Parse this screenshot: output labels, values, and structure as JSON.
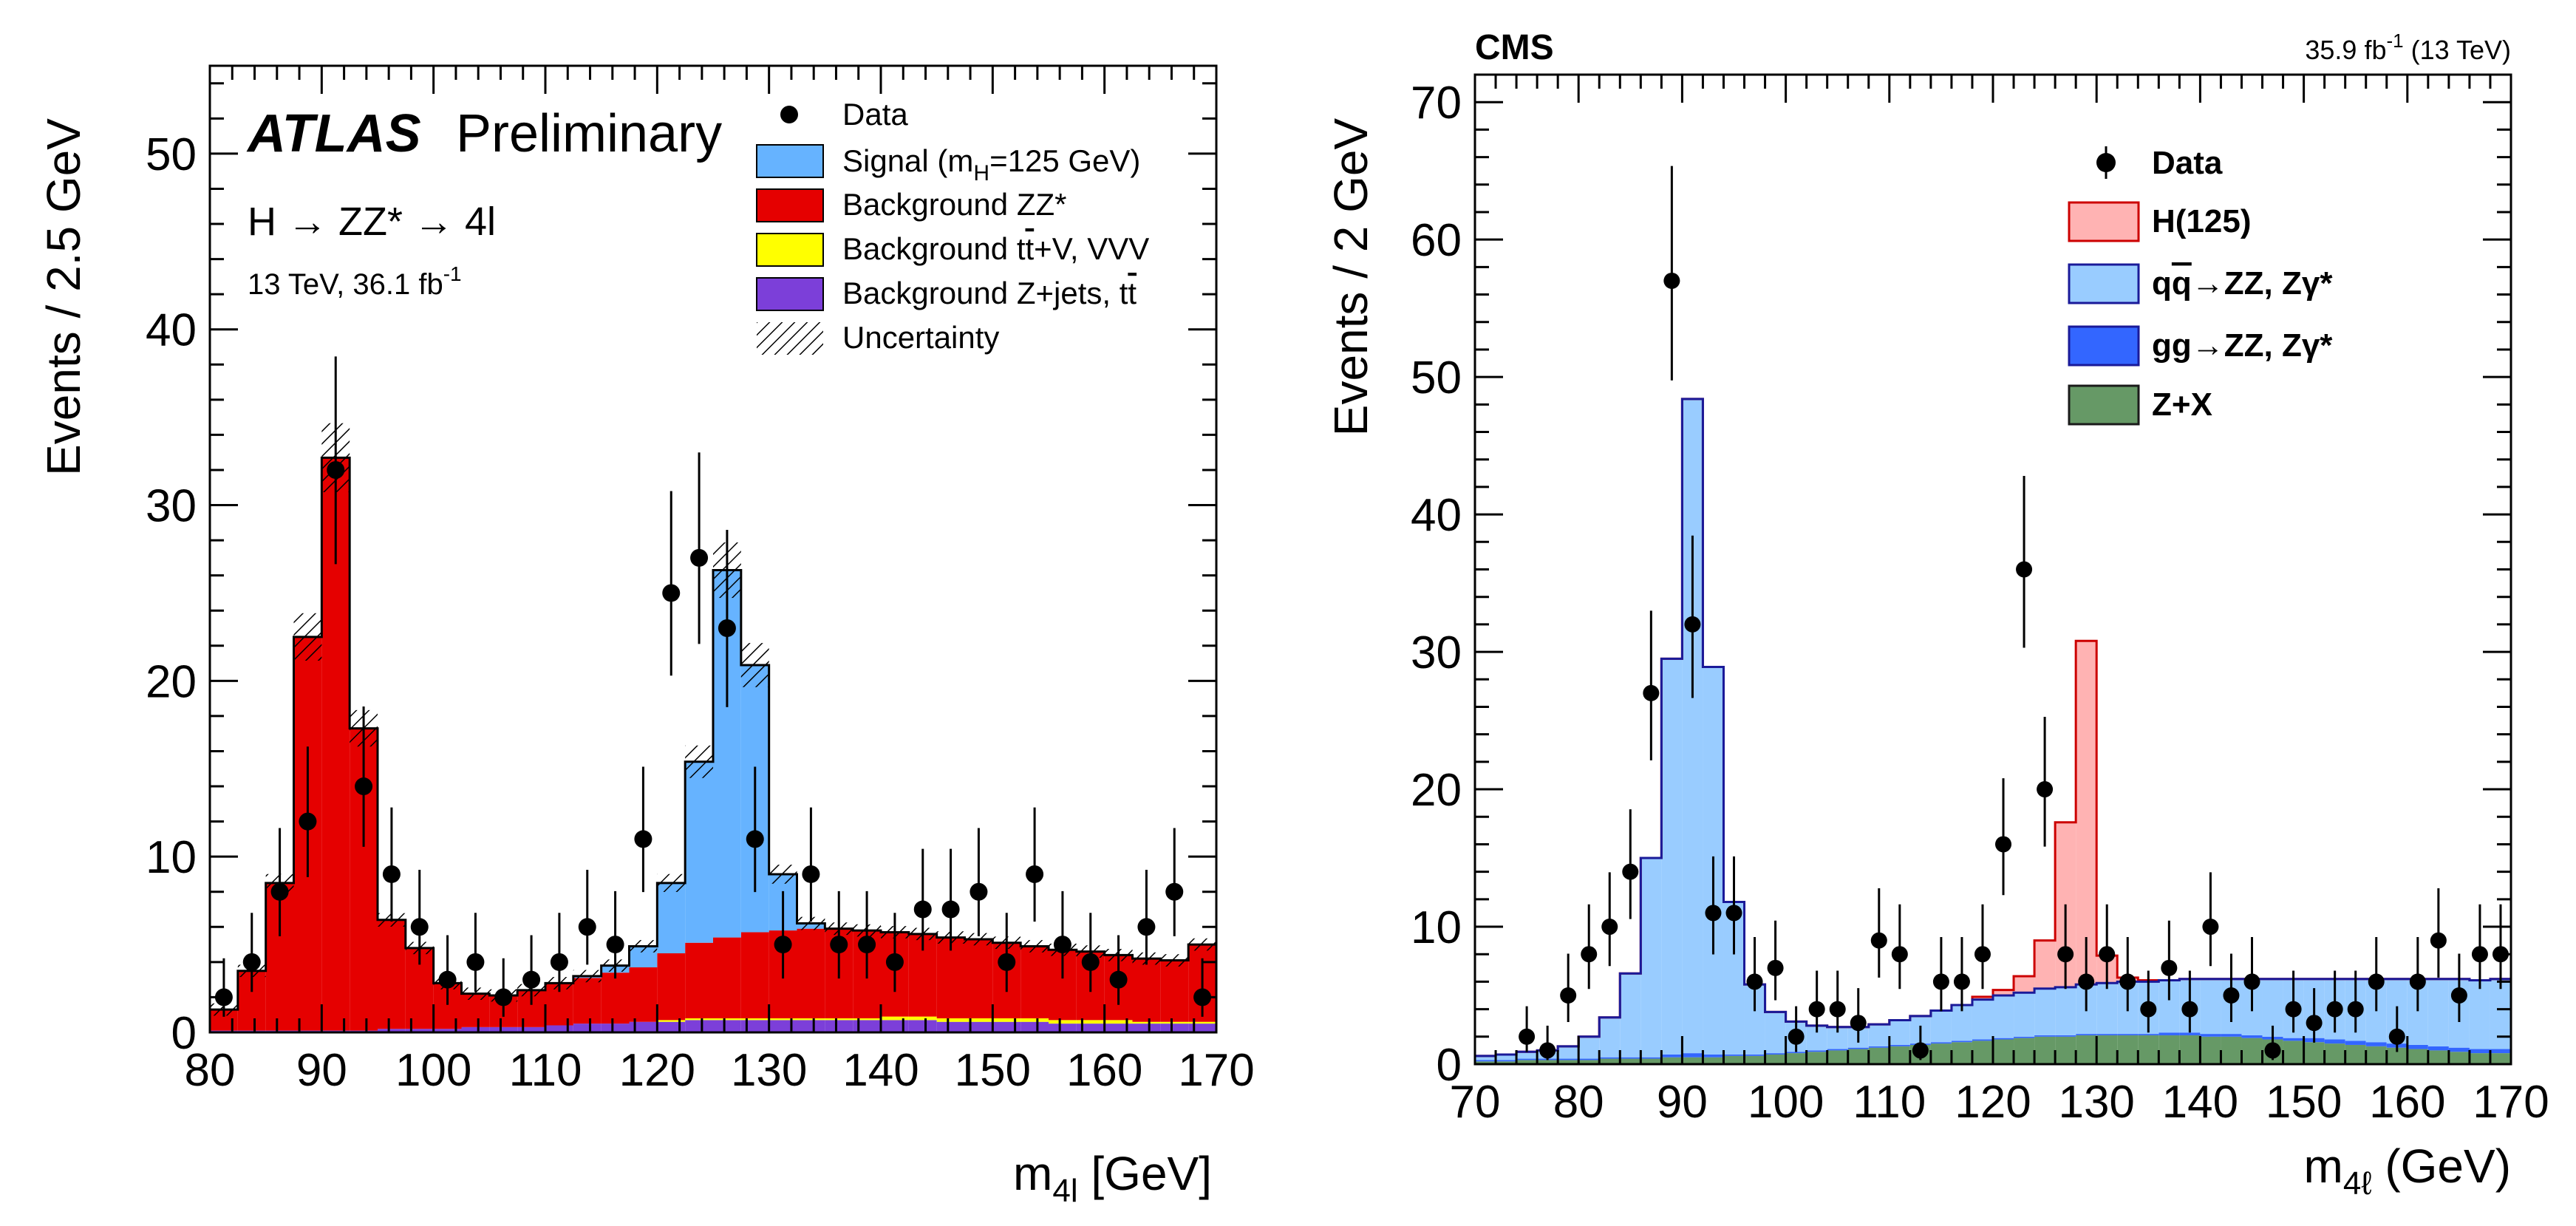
{
  "chart_data": [
    {
      "type": "bar",
      "id": "atlas",
      "experiment": "ATLAS",
      "status": "Preliminary",
      "process": "H → ZZ* → 4l",
      "energy_lumi": "13 TeV, 36.1 fb",
      "lumi_exp": "-1",
      "xlabel_main": "m",
      "xlabel_sub": "4l",
      "xlabel_unit": " [GeV]",
      "ylabel": "Events / 2.5 GeV",
      "xlim": [
        80,
        170
      ],
      "ylim": [
        0,
        55
      ],
      "xticks": [
        80,
        90,
        100,
        110,
        120,
        130,
        140,
        150,
        160,
        170
      ],
      "yticks": [
        0,
        10,
        20,
        30,
        40,
        50
      ],
      "bin_width": 2.5,
      "legend": {
        "data": "Data",
        "signal_pre": "Signal (m",
        "signal_sub": "H",
        "signal_post": "=125 GeV)",
        "zz": "Background ZZ*",
        "ttv_pre": "Background t",
        "ttv_bar": "t",
        "ttv_post": "+V, VVV",
        "zjets_pre": "Background Z+jets, t",
        "zjets_bar": "t",
        "uncertainty": "Uncertainty"
      },
      "colors": {
        "signal": "#66b3ff",
        "zz": "#e50000",
        "ttv": "#ffff00",
        "zjets": "#7c3fd9",
        "data": "#000000"
      },
      "bin_edges": [
        80,
        82.5,
        85,
        87.5,
        90,
        92.5,
        95,
        97.5,
        100,
        102.5,
        105,
        107.5,
        110,
        112.5,
        115,
        117.5,
        120,
        122.5,
        125,
        127.5,
        130,
        132.5,
        135,
        137.5,
        140,
        142.5,
        145,
        147.5,
        150,
        152.5,
        155,
        157.5,
        160,
        162.5,
        165,
        167.5,
        170
      ],
      "series": [
        {
          "name": "Background Z+jets, tt",
          "values": [
            0.1,
            0.1,
            0.1,
            0.1,
            0.1,
            0.1,
            0.2,
            0.2,
            0.2,
            0.3,
            0.3,
            0.3,
            0.4,
            0.5,
            0.5,
            0.6,
            0.6,
            0.7,
            0.7,
            0.7,
            0.7,
            0.7,
            0.7,
            0.7,
            0.7,
            0.7,
            0.6,
            0.6,
            0.6,
            0.6,
            0.5,
            0.5,
            0.5,
            0.5,
            0.5,
            0.5
          ]
        },
        {
          "name": "Background tt+V, VVV",
          "values": [
            0,
            0,
            0,
            0,
            0,
            0,
            0,
            0,
            0,
            0,
            0,
            0,
            0,
            0,
            0,
            0,
            0.1,
            0.1,
            0.1,
            0.1,
            0.1,
            0.1,
            0.1,
            0.1,
            0.2,
            0.2,
            0.2,
            0.2,
            0.2,
            0.2,
            0.2,
            0.2,
            0.2,
            0.1,
            0.1,
            0.1
          ]
        },
        {
          "name": "Background ZZ*",
          "values": [
            1.2,
            3.4,
            8.4,
            22.4,
            32.6,
            17.2,
            6.2,
            4.6,
            2.6,
            1.9,
            1.8,
            2.1,
            2.4,
            2.6,
            2.9,
            3.1,
            3.8,
            4.3,
            4.6,
            4.9,
            5.0,
            5.1,
            5.1,
            5.0,
            4.8,
            4.7,
            4.6,
            4.5,
            4.3,
            4.1,
            4.0,
            3.9,
            3.7,
            3.6,
            3.5,
            4.4
          ]
        },
        {
          "name": "Signal (mH=125 GeV)",
          "values": [
            0,
            0,
            0,
            0,
            0,
            0,
            0,
            0,
            0,
            0,
            0,
            0,
            0,
            0.1,
            0.4,
            1.2,
            4.0,
            10.3,
            20.9,
            15.2,
            3.2,
            0.3,
            0,
            0,
            0,
            0,
            0,
            0,
            0,
            0,
            0,
            0,
            0,
            0,
            0,
            0
          ]
        }
      ],
      "data_points": {
        "x": [
          81.25,
          83.75,
          86.25,
          88.75,
          91.25,
          93.75,
          96.25,
          98.75,
          101.25,
          103.75,
          106.25,
          108.75,
          111.25,
          113.75,
          116.25,
          118.75,
          121.25,
          123.75,
          126.25,
          128.75,
          131.25,
          133.75,
          136.25,
          138.75,
          141.25,
          143.75,
          146.25,
          148.75,
          151.25,
          153.75,
          156.25,
          158.75,
          161.25,
          163.75,
          166.25,
          168.75
        ],
        "y": [
          2,
          4,
          8,
          12,
          32,
          14,
          9,
          6,
          3,
          4,
          2,
          3,
          4,
          6,
          5,
          11,
          25,
          27,
          23,
          11,
          5,
          9,
          5,
          5,
          4,
          7,
          7,
          8,
          4,
          9,
          5,
          4,
          3,
          6,
          8,
          2
        ]
      }
    },
    {
      "type": "bar",
      "id": "cms",
      "experiment": "CMS",
      "lumi_label": "35.9 fb",
      "lumi_exp": "-1",
      "lumi_suffix": " (13 TeV)",
      "xlabel_main": "m",
      "xlabel_sub": "4ℓ",
      "xlabel_unit": " (GeV)",
      "ylabel": "Events / 2 GeV",
      "xlim": [
        70,
        170
      ],
      "ylim": [
        0,
        72
      ],
      "xticks": [
        70,
        80,
        90,
        100,
        110,
        120,
        130,
        140,
        150,
        160,
        170
      ],
      "yticks": [
        0,
        10,
        20,
        30,
        40,
        50,
        60,
        70
      ],
      "bin_width": 2,
      "legend": {
        "data": "Data",
        "higgs": "H(125)",
        "qqzz_pre": "q",
        "qqzz_bar": "q",
        "qqzz_post": "→ZZ, Zγ*",
        "ggzz": "gg→ZZ, Zγ*",
        "zx": "Z+X"
      },
      "colors": {
        "higgs": "#ffb3b3",
        "qqzz": "#99ccff",
        "ggzz": "#3366ff",
        "zx": "#669966",
        "outline": "#1a1a99",
        "data": "#000000"
      },
      "bin_edges": [
        70,
        72,
        74,
        76,
        78,
        80,
        82,
        84,
        86,
        88,
        90,
        92,
        94,
        96,
        98,
        100,
        102,
        104,
        106,
        108,
        110,
        112,
        114,
        116,
        118,
        120,
        122,
        124,
        126,
        128,
        130,
        132,
        134,
        136,
        138,
        140,
        142,
        144,
        146,
        148,
        150,
        152,
        154,
        156,
        158,
        160,
        162,
        164,
        166,
        168,
        170
      ],
      "series": [
        {
          "name": "Z+X",
          "values": [
            0.2,
            0.2,
            0.3,
            0.3,
            0.3,
            0.3,
            0.4,
            0.4,
            0.4,
            0.5,
            0.5,
            0.5,
            0.6,
            0.6,
            0.7,
            0.8,
            0.9,
            1.0,
            1.1,
            1.2,
            1.3,
            1.4,
            1.5,
            1.6,
            1.7,
            1.8,
            1.9,
            2.0,
            2.0,
            2.1,
            2.1,
            2.1,
            2.1,
            2.1,
            2.1,
            2.0,
            2.0,
            1.9,
            1.8,
            1.7,
            1.6,
            1.5,
            1.4,
            1.3,
            1.2,
            1.1,
            1.0,
            0.9,
            0.8,
            0.8
          ]
        },
        {
          "name": "gg→ZZ, Zγ*",
          "values": [
            0.1,
            0.1,
            0.1,
            0.1,
            0.1,
            0.1,
            0.1,
            0.1,
            0.1,
            0.2,
            0.3,
            0.2,
            0.1,
            0.1,
            0.1,
            0.1,
            0.1,
            0.1,
            0.1,
            0.1,
            0.1,
            0.1,
            0.1,
            0.1,
            0.1,
            0.1,
            0.1,
            0.1,
            0.1,
            0.1,
            0.1,
            0.1,
            0.1,
            0.2,
            0.2,
            0.2,
            0.2,
            0.2,
            0.2,
            0.2,
            0.3,
            0.3,
            0.3,
            0.3,
            0.3,
            0.3,
            0.3,
            0.3,
            0.3,
            0.3
          ]
        },
        {
          "name": "qq→ZZ, Zγ*",
          "values": [
            0.3,
            0.4,
            0.5,
            0.6,
            0.9,
            1.6,
            2.9,
            6.1,
            14.5,
            28.8,
            47.6,
            28.2,
            11.1,
            5.1,
            3.0,
            2.2,
            1.8,
            1.6,
            1.5,
            1.6,
            1.8,
            2.0,
            2.3,
            2.6,
            2.9,
            3.1,
            3.2,
            3.4,
            3.5,
            3.6,
            3.7,
            3.8,
            3.8,
            3.8,
            3.9,
            4.0,
            4.0,
            4.1,
            4.2,
            4.3,
            4.3,
            4.4,
            4.5,
            4.6,
            4.7,
            4.8,
            4.9,
            5.0,
            5.0,
            5.1
          ]
        },
        {
          "name": "H(125)",
          "values": [
            0,
            0,
            0,
            0,
            0,
            0,
            0,
            0,
            0,
            0,
            0,
            0,
            0,
            0,
            0,
            0,
            0,
            0,
            0,
            0,
            0,
            0,
            0,
            0,
            0.2,
            0.4,
            1.2,
            3.5,
            12.0,
            25.0,
            2.0,
            0.3,
            0.1,
            0,
            0,
            0,
            0,
            0,
            0,
            0,
            0,
            0,
            0,
            0,
            0,
            0,
            0,
            0,
            0,
            0
          ]
        }
      ],
      "data_points": {
        "x": [
          75,
          77,
          79,
          81,
          83,
          85,
          87,
          89,
          91,
          93,
          95,
          97,
          99,
          101,
          103,
          105,
          107,
          109,
          111,
          113,
          115,
          117,
          119,
          121,
          123,
          125,
          127,
          129,
          131,
          133,
          135,
          137,
          139,
          141,
          143,
          145,
          147,
          149,
          151,
          153,
          155,
          157,
          159,
          161,
          163,
          165,
          167,
          169
        ],
        "y": [
          2,
          1,
          5,
          8,
          10,
          14,
          27,
          57,
          32,
          11,
          11,
          6,
          7,
          2,
          4,
          4,
          3,
          9,
          8,
          1,
          6,
          6,
          8,
          16,
          36,
          20,
          8,
          6,
          8,
          6,
          4,
          7,
          4,
          10,
          5,
          6,
          1,
          4,
          3,
          4,
          4,
          6,
          2,
          6,
          9,
          5,
          8,
          8
        ]
      }
    }
  ]
}
